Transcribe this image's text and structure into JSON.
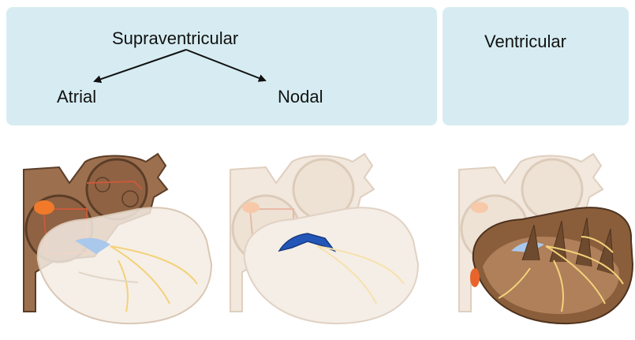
{
  "categories": {
    "supraventricular": {
      "label": "Supraventricular",
      "subtypes": [
        "Atrial",
        "Nodal"
      ]
    },
    "ventricular": {
      "label": "Ventricular"
    }
  },
  "hearts": [
    {
      "highlight": "atria"
    },
    {
      "highlight": "av-node"
    },
    {
      "highlight": "ventricles"
    }
  ],
  "colors": {
    "panel": "#d6ecf2",
    "atrial_highlight": "#9c6f4e",
    "nodal_highlight": "#2456b8",
    "ventricular_highlight": "#8a5e3b",
    "conduction": "#f3d27a",
    "focus": "#f07a2a"
  }
}
